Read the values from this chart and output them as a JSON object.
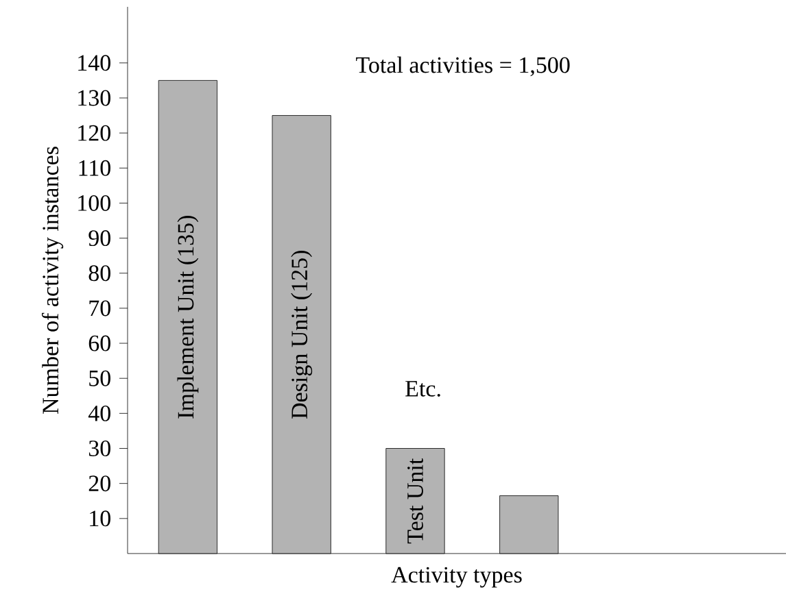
{
  "chart_data": {
    "type": "bar",
    "xlabel": "Activity types",
    "ylabel": "Number of activity instances",
    "categories": [
      "Implement Unit (135)",
      "Design Unit (125)",
      "Test Unit",
      null
    ],
    "values": [
      135,
      125,
      30,
      16.5
    ],
    "color": "#b3b3b3",
    "ylim": [
      0,
      156
    ],
    "yticks": [
      10,
      20,
      30,
      40,
      50,
      60,
      70,
      80,
      90,
      100,
      110,
      120,
      130,
      140
    ],
    "annotations": [
      "Total activities = 1,500",
      "Etc."
    ],
    "grid": false
  }
}
